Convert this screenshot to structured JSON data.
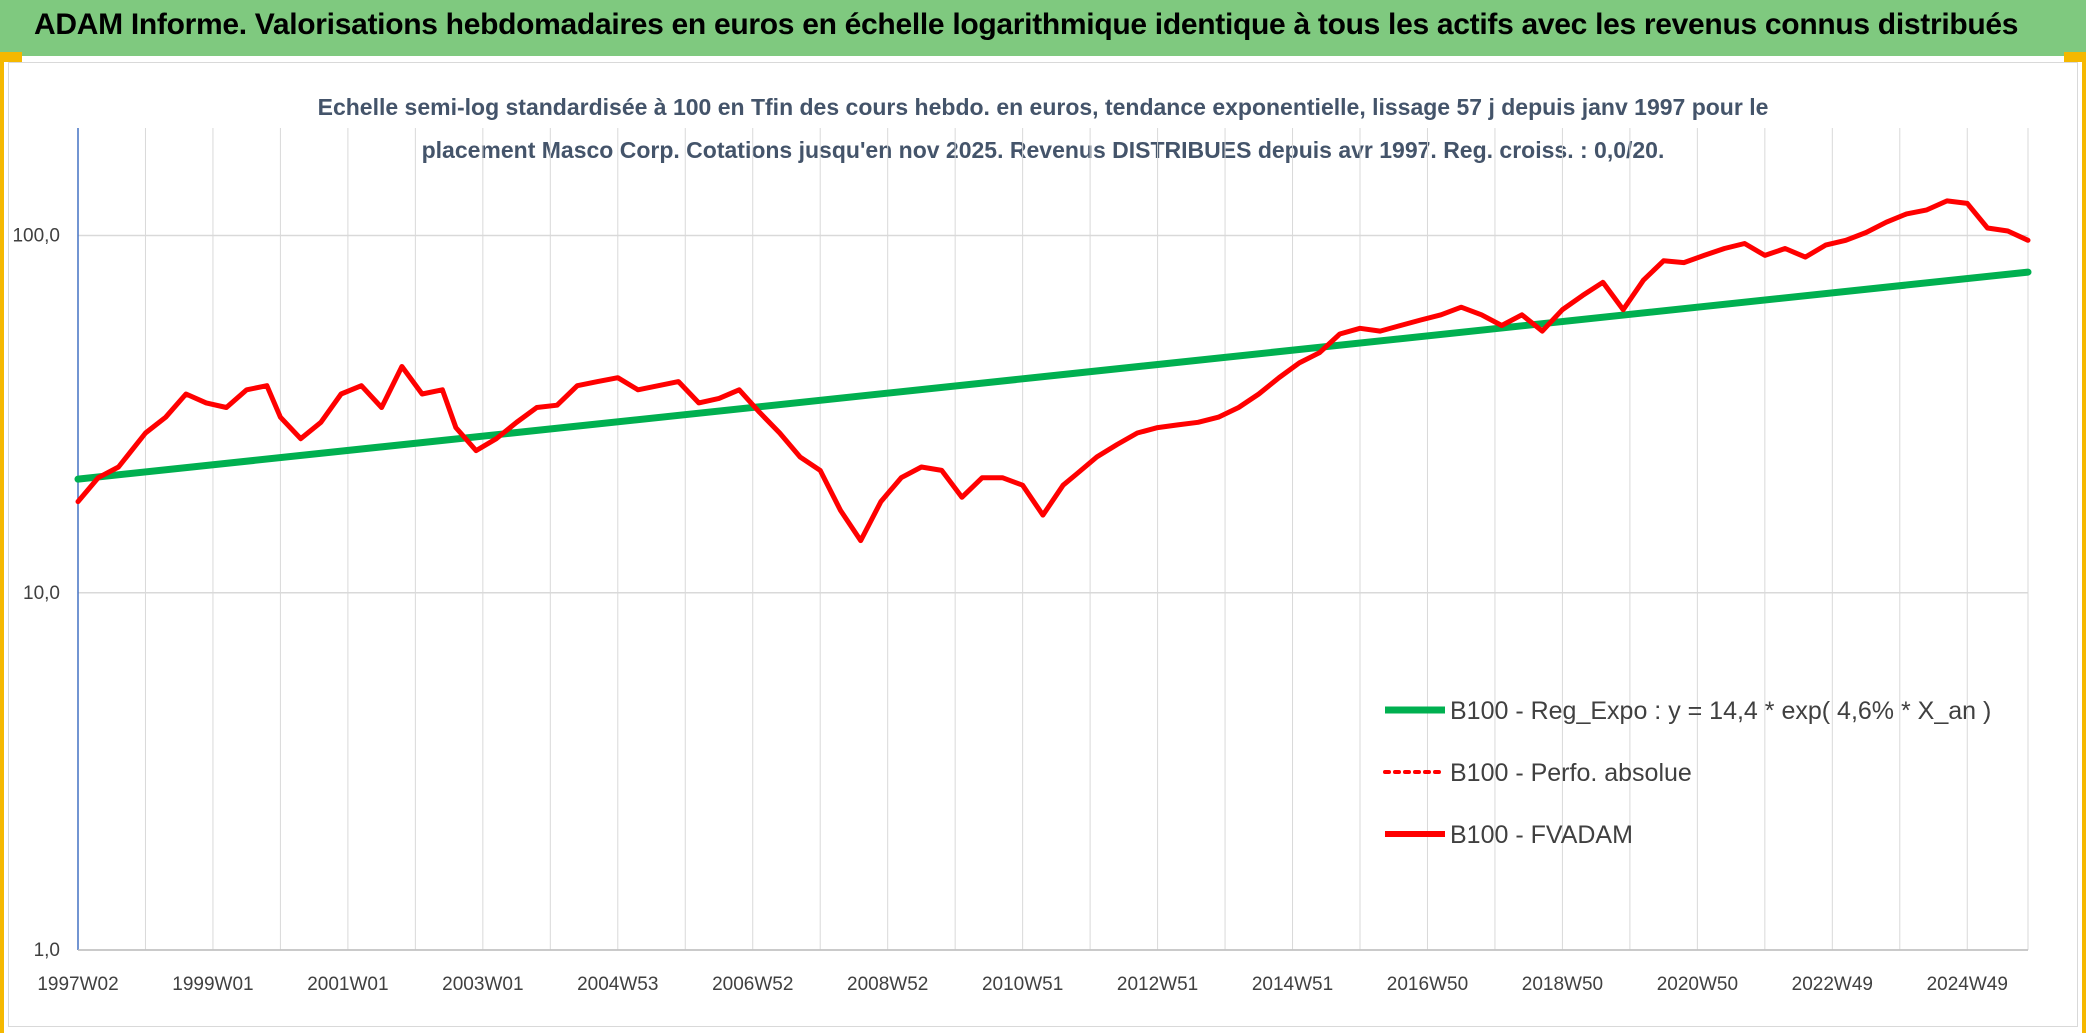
{
  "header": {
    "title": "ADAM Informe. Valorisations hebdomadaires en euros en échelle logarithmique identique à tous les actifs avec les revenus connus distribués"
  },
  "colors": {
    "banner": "#7fc97f",
    "accent": "#f5b800",
    "trend": "#00b050",
    "fvadam": "#ff0000",
    "grid": "#d9d9d9"
  },
  "chart_data": {
    "type": "line",
    "scale": "log",
    "title_line1": "Echelle semi-log standardisée à 100 en Tfin des cours hebdo. en euros, tendance exponentielle, lissage 57 j depuis janv 1997 pour le",
    "title_line2": "placement Masco Corp. Cotations jusqu'en nov 2025. Revenus DISTRIBUES depuis avr 1997. Reg. croiss. : 0,0/20.",
    "ylim": [
      1,
      200
    ],
    "yticks": [
      {
        "value": 1,
        "label": "1,0"
      },
      {
        "value": 10,
        "label": "10,0"
      },
      {
        "value": 100,
        "label": "100,0"
      }
    ],
    "xlim": [
      1997.0,
      2025.9
    ],
    "xticks": [
      {
        "year": 1997.0,
        "label": "1997W02"
      },
      {
        "year": 1999.0,
        "label": "1999W01"
      },
      {
        "year": 2001.0,
        "label": "2001W01"
      },
      {
        "year": 2003.0,
        "label": "2003W01"
      },
      {
        "year": 2005.0,
        "label": "2004W53"
      },
      {
        "year": 2007.0,
        "label": "2006W52"
      },
      {
        "year": 2009.0,
        "label": "2008W52"
      },
      {
        "year": 2011.0,
        "label": "2010W51"
      },
      {
        "year": 2013.0,
        "label": "2012W51"
      },
      {
        "year": 2015.0,
        "label": "2014W51"
      },
      {
        "year": 2017.0,
        "label": "2016W50"
      },
      {
        "year": 2019.0,
        "label": "2018W50"
      },
      {
        "year": 2021.0,
        "label": "2020W50"
      },
      {
        "year": 2023.0,
        "label": "2022W49"
      },
      {
        "year": 2025.0,
        "label": "2024W49"
      }
    ],
    "series": [
      {
        "name": "B100 - Reg_Expo : y = 14,4 * exp( 4,6% *  X_an )",
        "style": "solid-thick",
        "color": "#00b050",
        "x": [
          1997.0,
          2025.9
        ],
        "y": [
          20.8,
          79.0
        ]
      },
      {
        "name": "B100 - Perfo. absolue",
        "style": "dotted",
        "color": "#ff0000",
        "x": [],
        "y": []
      },
      {
        "name": "B100 - FVADAM",
        "style": "solid",
        "color": "#ff0000",
        "x": [
          1997.0,
          1997.3,
          1997.6,
          1998.0,
          1998.3,
          1998.6,
          1998.9,
          1999.2,
          1999.5,
          1999.8,
          2000.0,
          2000.3,
          2000.6,
          2000.9,
          2001.2,
          2001.5,
          2001.8,
          2002.1,
          2002.4,
          2002.6,
          2002.9,
          2003.2,
          2003.5,
          2003.8,
          2004.1,
          2004.4,
          2004.7,
          2005.0,
          2005.3,
          2005.6,
          2005.9,
          2006.2,
          2006.5,
          2006.8,
          2007.1,
          2007.4,
          2007.7,
          2008.0,
          2008.3,
          2008.6,
          2008.9,
          2009.2,
          2009.5,
          2009.8,
          2010.1,
          2010.4,
          2010.7,
          2011.0,
          2011.3,
          2011.6,
          2011.8,
          2012.1,
          2012.4,
          2012.7,
          2013.0,
          2013.3,
          2013.6,
          2013.9,
          2014.2,
          2014.5,
          2014.8,
          2015.1,
          2015.4,
          2015.7,
          2016.0,
          2016.3,
          2016.6,
          2016.9,
          2017.2,
          2017.5,
          2017.8,
          2018.1,
          2018.4,
          2018.7,
          2019.0,
          2019.3,
          2019.6,
          2019.9,
          2020.2,
          2020.5,
          2020.8,
          2021.1,
          2021.4,
          2021.7,
          2022.0,
          2022.3,
          2022.6,
          2022.9,
          2023.2,
          2023.5,
          2023.8,
          2024.1,
          2024.4,
          2024.7,
          2025.0,
          2025.3,
          2025.6,
          2025.9
        ],
        "y": [
          18.0,
          21.0,
          22.5,
          28.0,
          31.0,
          36.0,
          34.0,
          33.0,
          37.0,
          38.0,
          31.0,
          27.0,
          30.0,
          36.0,
          38.0,
          33.0,
          43.0,
          36.0,
          37.0,
          29.0,
          25.0,
          27.0,
          30.0,
          33.0,
          33.5,
          38.0,
          39.0,
          40.0,
          37.0,
          38.0,
          39.0,
          34.0,
          35.0,
          37.0,
          32.0,
          28.0,
          24.0,
          22.0,
          17.0,
          14.0,
          18.0,
          21.0,
          22.5,
          22.0,
          18.5,
          21.0,
          21.0,
          20.0,
          16.5,
          20.0,
          21.5,
          24.0,
          26.0,
          28.0,
          29.0,
          29.5,
          30.0,
          31.0,
          33.0,
          36.0,
          40.0,
          44.0,
          47.0,
          53.0,
          55.0,
          54.0,
          56.0,
          58.0,
          60.0,
          63.0,
          60.0,
          56.0,
          60.0,
          54.0,
          62.0,
          68.0,
          74.0,
          62.0,
          75.0,
          85.0,
          84.0,
          88.0,
          92.0,
          95.0,
          88.0,
          92.0,
          87.0,
          94.0,
          97.0,
          102.0,
          109.0,
          115.0,
          118.0,
          125.0,
          123.0,
          105.0,
          103.0,
          97.0
        ]
      }
    ],
    "legend_position": "right-lower"
  }
}
